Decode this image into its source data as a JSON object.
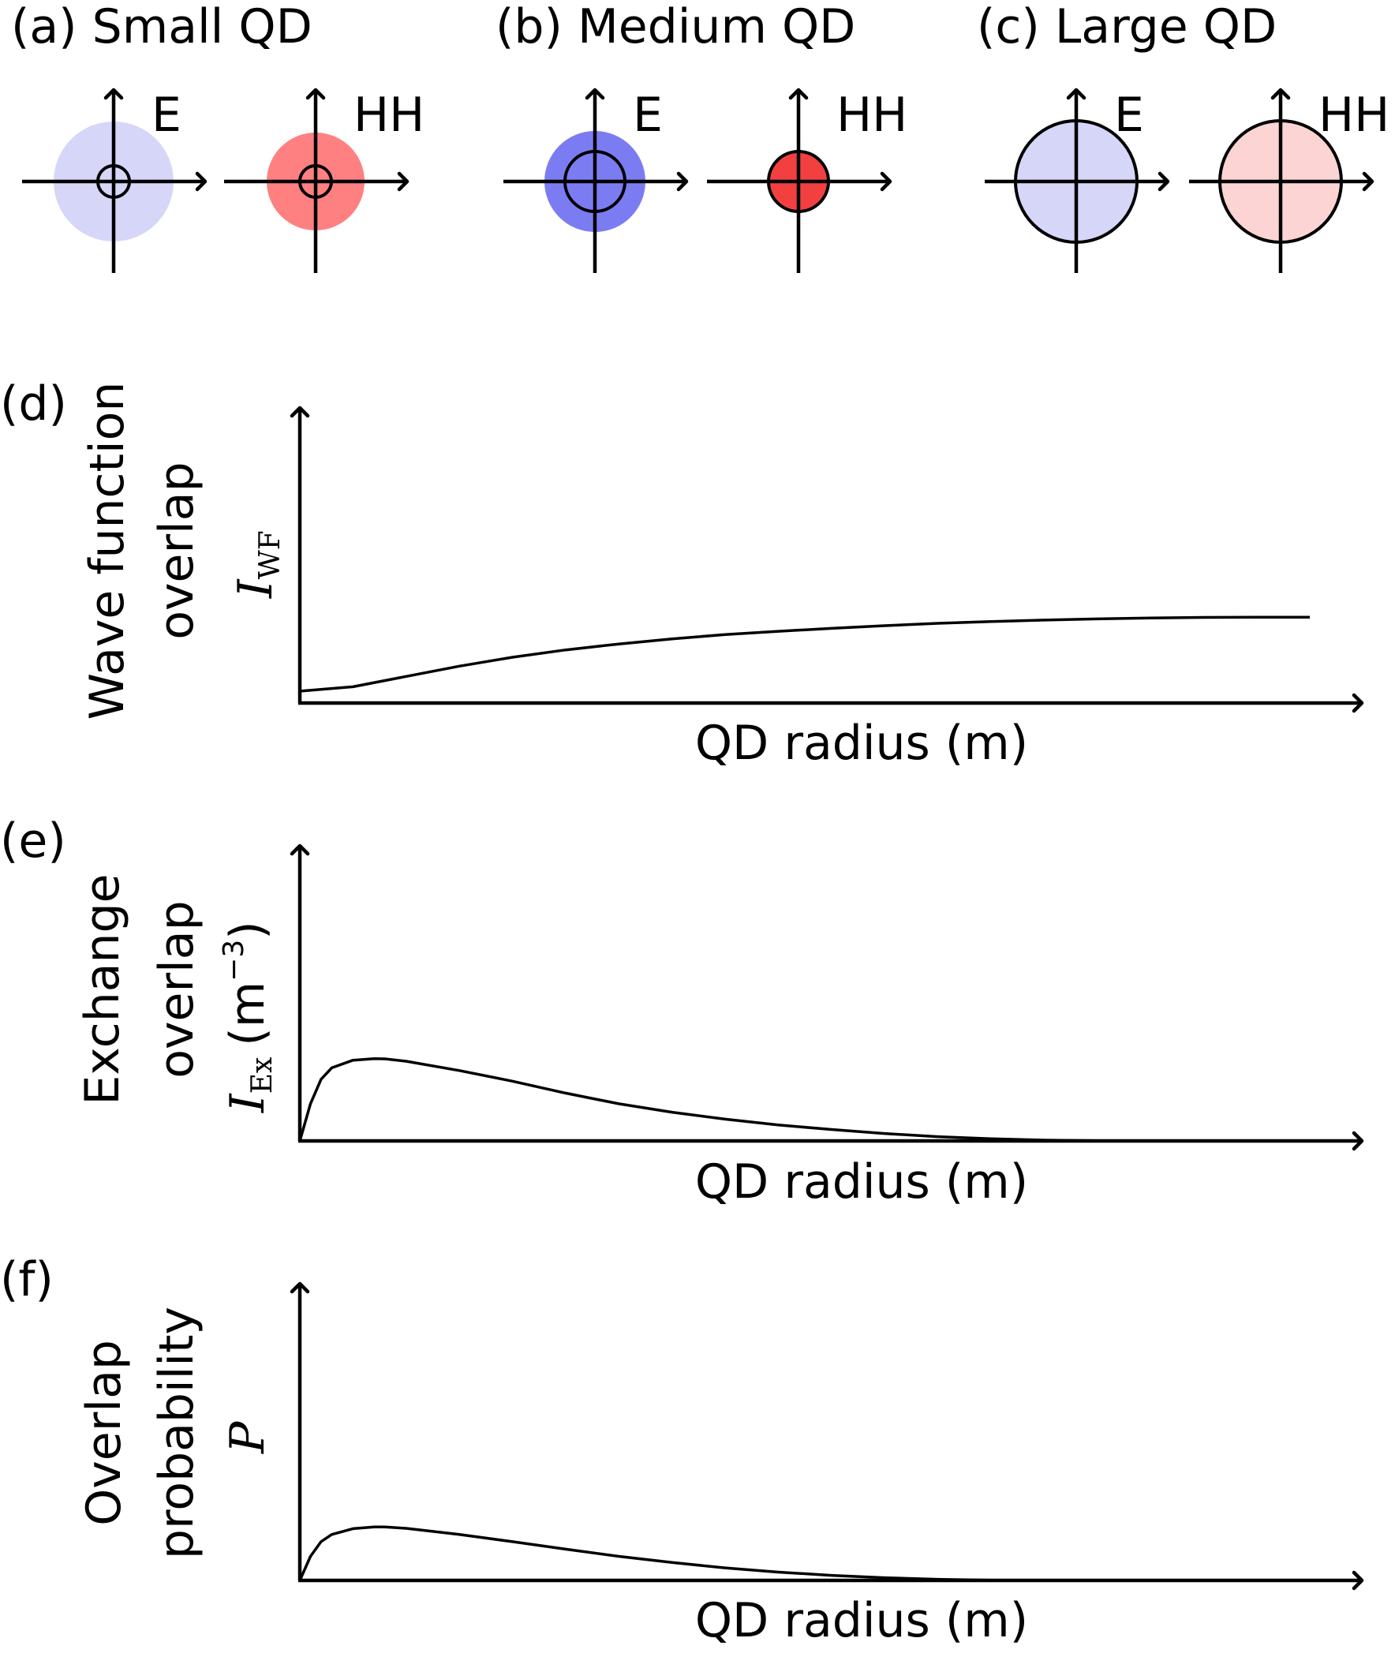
{
  "top_panels": [
    {
      "label": "(a) Small QD",
      "diagrams": [
        {
          "label": "E",
          "fill_color": "#d6d6f8",
          "fill_radius_rel": 1.0,
          "well_radius_rel": 0.26
        },
        {
          "label": "HH",
          "fill_color": "#ff8080",
          "fill_radius_rel": 0.8,
          "well_radius_rel": 0.26
        }
      ]
    },
    {
      "label": "(b) Medium QD",
      "diagrams": [
        {
          "label": "E",
          "fill_color": "#7c7cf2",
          "fill_radius_rel": 1.0,
          "well_radius_rel": 0.62
        },
        {
          "label": "HH",
          "fill_color": "#f24040",
          "fill_radius_rel": 0.62,
          "well_radius_rel": 0.62
        }
      ]
    },
    {
      "label": "(c) Large QD",
      "diagrams": [
        {
          "label": "E",
          "fill_color": "#d6d6f8",
          "fill_radius_rel": 1.0,
          "well_radius_rel": 1.0
        },
        {
          "label": "HH",
          "fill_color": "#fdd4d4",
          "fill_radius_rel": 1.0,
          "well_radius_rel": 1.0
        }
      ]
    }
  ],
  "chart_data": [
    {
      "panel": "(d)",
      "type": "line",
      "ylabel_lines": [
        "Wave function",
        "overlap"
      ],
      "ysymbol": "I",
      "ysubscript": "WF",
      "yunit": "",
      "xlabel": "QD radius (m)",
      "x": [
        0,
        0.05,
        0.1,
        0.15,
        0.2,
        0.25,
        0.3,
        0.35,
        0.4,
        0.45,
        0.5,
        0.55,
        0.6,
        0.65,
        0.7,
        0.75,
        0.8,
        0.85,
        0.9,
        0.95
      ],
      "y": [
        0.04,
        0.055,
        0.09,
        0.125,
        0.155,
        0.18,
        0.2,
        0.217,
        0.232,
        0.243,
        0.253,
        0.262,
        0.27,
        0.276,
        0.281,
        0.285,
        0.288,
        0.29,
        0.291,
        0.291
      ],
      "ylim": [
        0,
        1
      ],
      "xlim": [
        0,
        1
      ]
    },
    {
      "panel": "(e)",
      "type": "line",
      "ylabel_lines": [
        "Exchange",
        "overlap"
      ],
      "ysymbol": "I",
      "ysubscript": "Ex",
      "yunit": "(m",
      "yunit_exp": "−3",
      "yunit_close": ")",
      "xlabel": "QD radius (m)",
      "x": [
        0,
        0.01,
        0.02,
        0.03,
        0.05,
        0.07,
        0.08,
        0.1,
        0.15,
        0.2,
        0.25,
        0.3,
        0.35,
        0.4,
        0.45,
        0.5,
        0.55,
        0.6,
        0.65,
        0.7,
        0.75,
        0.8,
        0.85,
        0.9,
        0.95
      ],
      "y": [
        0,
        0.14,
        0.232,
        0.275,
        0.304,
        0.31,
        0.309,
        0.3,
        0.265,
        0.225,
        0.18,
        0.14,
        0.108,
        0.082,
        0.06,
        0.043,
        0.028,
        0.016,
        0.008,
        0.003,
        0.001,
        0.0,
        0.0,
        0.0,
        0.0
      ],
      "ylim": [
        0,
        1
      ],
      "xlim": [
        0,
        1
      ]
    },
    {
      "panel": "(f)",
      "type": "line",
      "ylabel_lines": [
        "Overlap",
        "probability"
      ],
      "ysymbol": "P",
      "ysubscript": "",
      "yunit": "",
      "xlabel": "QD radius (m)",
      "x": [
        0,
        0.01,
        0.02,
        0.03,
        0.05,
        0.07,
        0.08,
        0.1,
        0.15,
        0.2,
        0.25,
        0.3,
        0.35,
        0.4,
        0.45,
        0.5,
        0.55,
        0.6,
        0.65,
        0.7,
        0.75,
        0.8,
        0.85,
        0.9,
        0.95
      ],
      "y": [
        0,
        0.09,
        0.145,
        0.172,
        0.194,
        0.2,
        0.2,
        0.195,
        0.172,
        0.145,
        0.117,
        0.09,
        0.067,
        0.047,
        0.031,
        0.019,
        0.01,
        0.004,
        0.001,
        0.0,
        0.0,
        0.0,
        0.0,
        0.0,
        0.0
      ],
      "ylim": [
        0,
        1
      ],
      "xlim": [
        0,
        1
      ]
    }
  ]
}
